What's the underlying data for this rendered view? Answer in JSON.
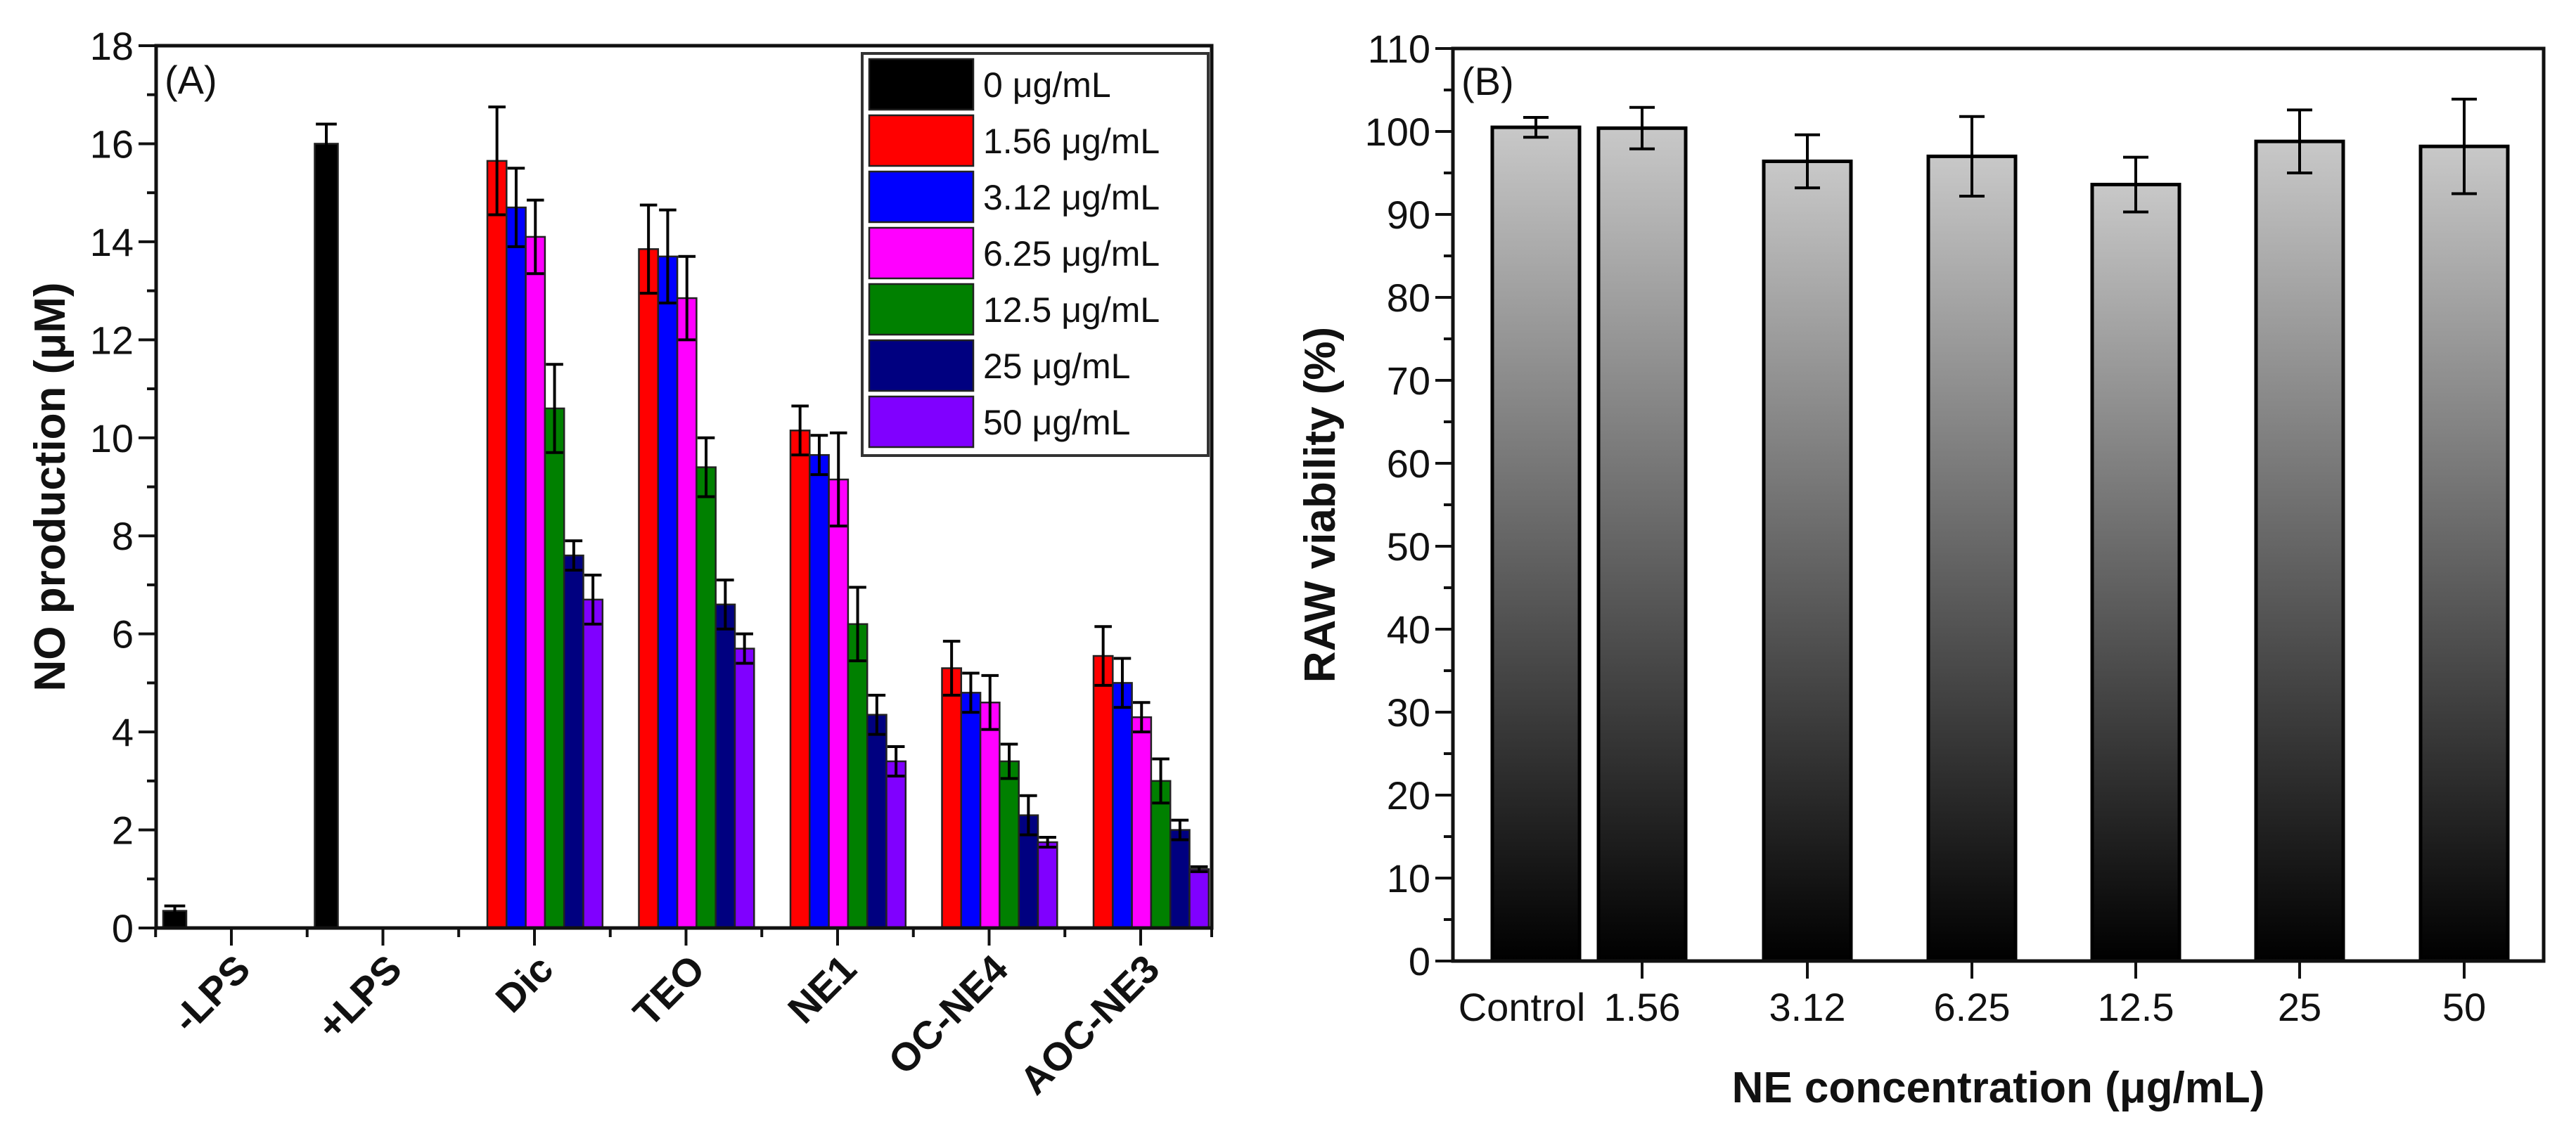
{
  "chart_data": [
    {
      "type": "bar",
      "panel_label": "(A)",
      "ylabel": "NO production (μM)",
      "xlabel": "",
      "ylim": [
        0,
        18
      ],
      "yticks": [
        0,
        2,
        4,
        6,
        8,
        10,
        12,
        14,
        16,
        18
      ],
      "categories": [
        "-LPS",
        "+LPS",
        "Dic",
        "TEO",
        "NE1",
        "OC-NE4",
        "AOC-NE3"
      ],
      "legend_position": "top-right",
      "series": [
        {
          "name": "0 μg/mL",
          "color": "#000000",
          "values": [
            0.35,
            16.0,
            null,
            null,
            null,
            null,
            null
          ],
          "errors": [
            0.1,
            0.4,
            null,
            null,
            null,
            null,
            null
          ]
        },
        {
          "name": "1.56 μg/mL",
          "color": "#ff0000",
          "values": [
            null,
            null,
            15.65,
            13.85,
            10.15,
            5.3,
            5.55
          ],
          "errors": [
            null,
            null,
            1.1,
            0.9,
            0.5,
            0.55,
            0.6
          ]
        },
        {
          "name": "3.12 μg/mL",
          "color": "#0000ff",
          "values": [
            null,
            null,
            14.7,
            13.7,
            9.65,
            4.8,
            5.0
          ],
          "errors": [
            null,
            null,
            0.8,
            0.95,
            0.4,
            0.4,
            0.5
          ]
        },
        {
          "name": "6.25 μg/mL",
          "color": "#ff00ff",
          "values": [
            null,
            null,
            14.1,
            12.85,
            9.15,
            4.6,
            4.3
          ],
          "errors": [
            null,
            null,
            0.75,
            0.85,
            0.95,
            0.55,
            0.3
          ]
        },
        {
          "name": "12.5 μg/mL",
          "color": "#008000",
          "values": [
            null,
            null,
            10.6,
            9.4,
            6.2,
            3.4,
            3.0
          ],
          "errors": [
            null,
            null,
            0.9,
            0.6,
            0.75,
            0.35,
            0.45
          ]
        },
        {
          "name": "25 μg/mL",
          "color": "#000080",
          "values": [
            null,
            null,
            7.6,
            6.6,
            4.35,
            2.3,
            2.0
          ],
          "errors": [
            null,
            null,
            0.3,
            0.5,
            0.4,
            0.4,
            0.2
          ]
        },
        {
          "name": "50 μg/mL",
          "color": "#8000ff",
          "values": [
            null,
            null,
            6.7,
            5.7,
            3.4,
            1.75,
            1.2
          ],
          "errors": [
            null,
            null,
            0.5,
            0.3,
            0.3,
            0.1,
            0.05
          ]
        }
      ]
    },
    {
      "type": "bar",
      "panel_label": "(B)",
      "ylabel": "RAW viability (%)",
      "xlabel": "NE concentration (μg/mL)",
      "ylim": [
        0,
        110
      ],
      "yticks": [
        0,
        10,
        20,
        30,
        40,
        50,
        60,
        70,
        80,
        90,
        100,
        110
      ],
      "categories": [
        "Control",
        "1.56",
        "3.12",
        "6.25",
        "12.5",
        "25",
        "50"
      ],
      "values": [
        100.5,
        100.4,
        96.4,
        97.0,
        93.6,
        98.8,
        98.2
      ],
      "errors": [
        1.2,
        2.5,
        3.2,
        4.8,
        3.3,
        3.8,
        5.7
      ],
      "bar_gradient": [
        "#c8c8c8",
        "#000000"
      ]
    }
  ]
}
